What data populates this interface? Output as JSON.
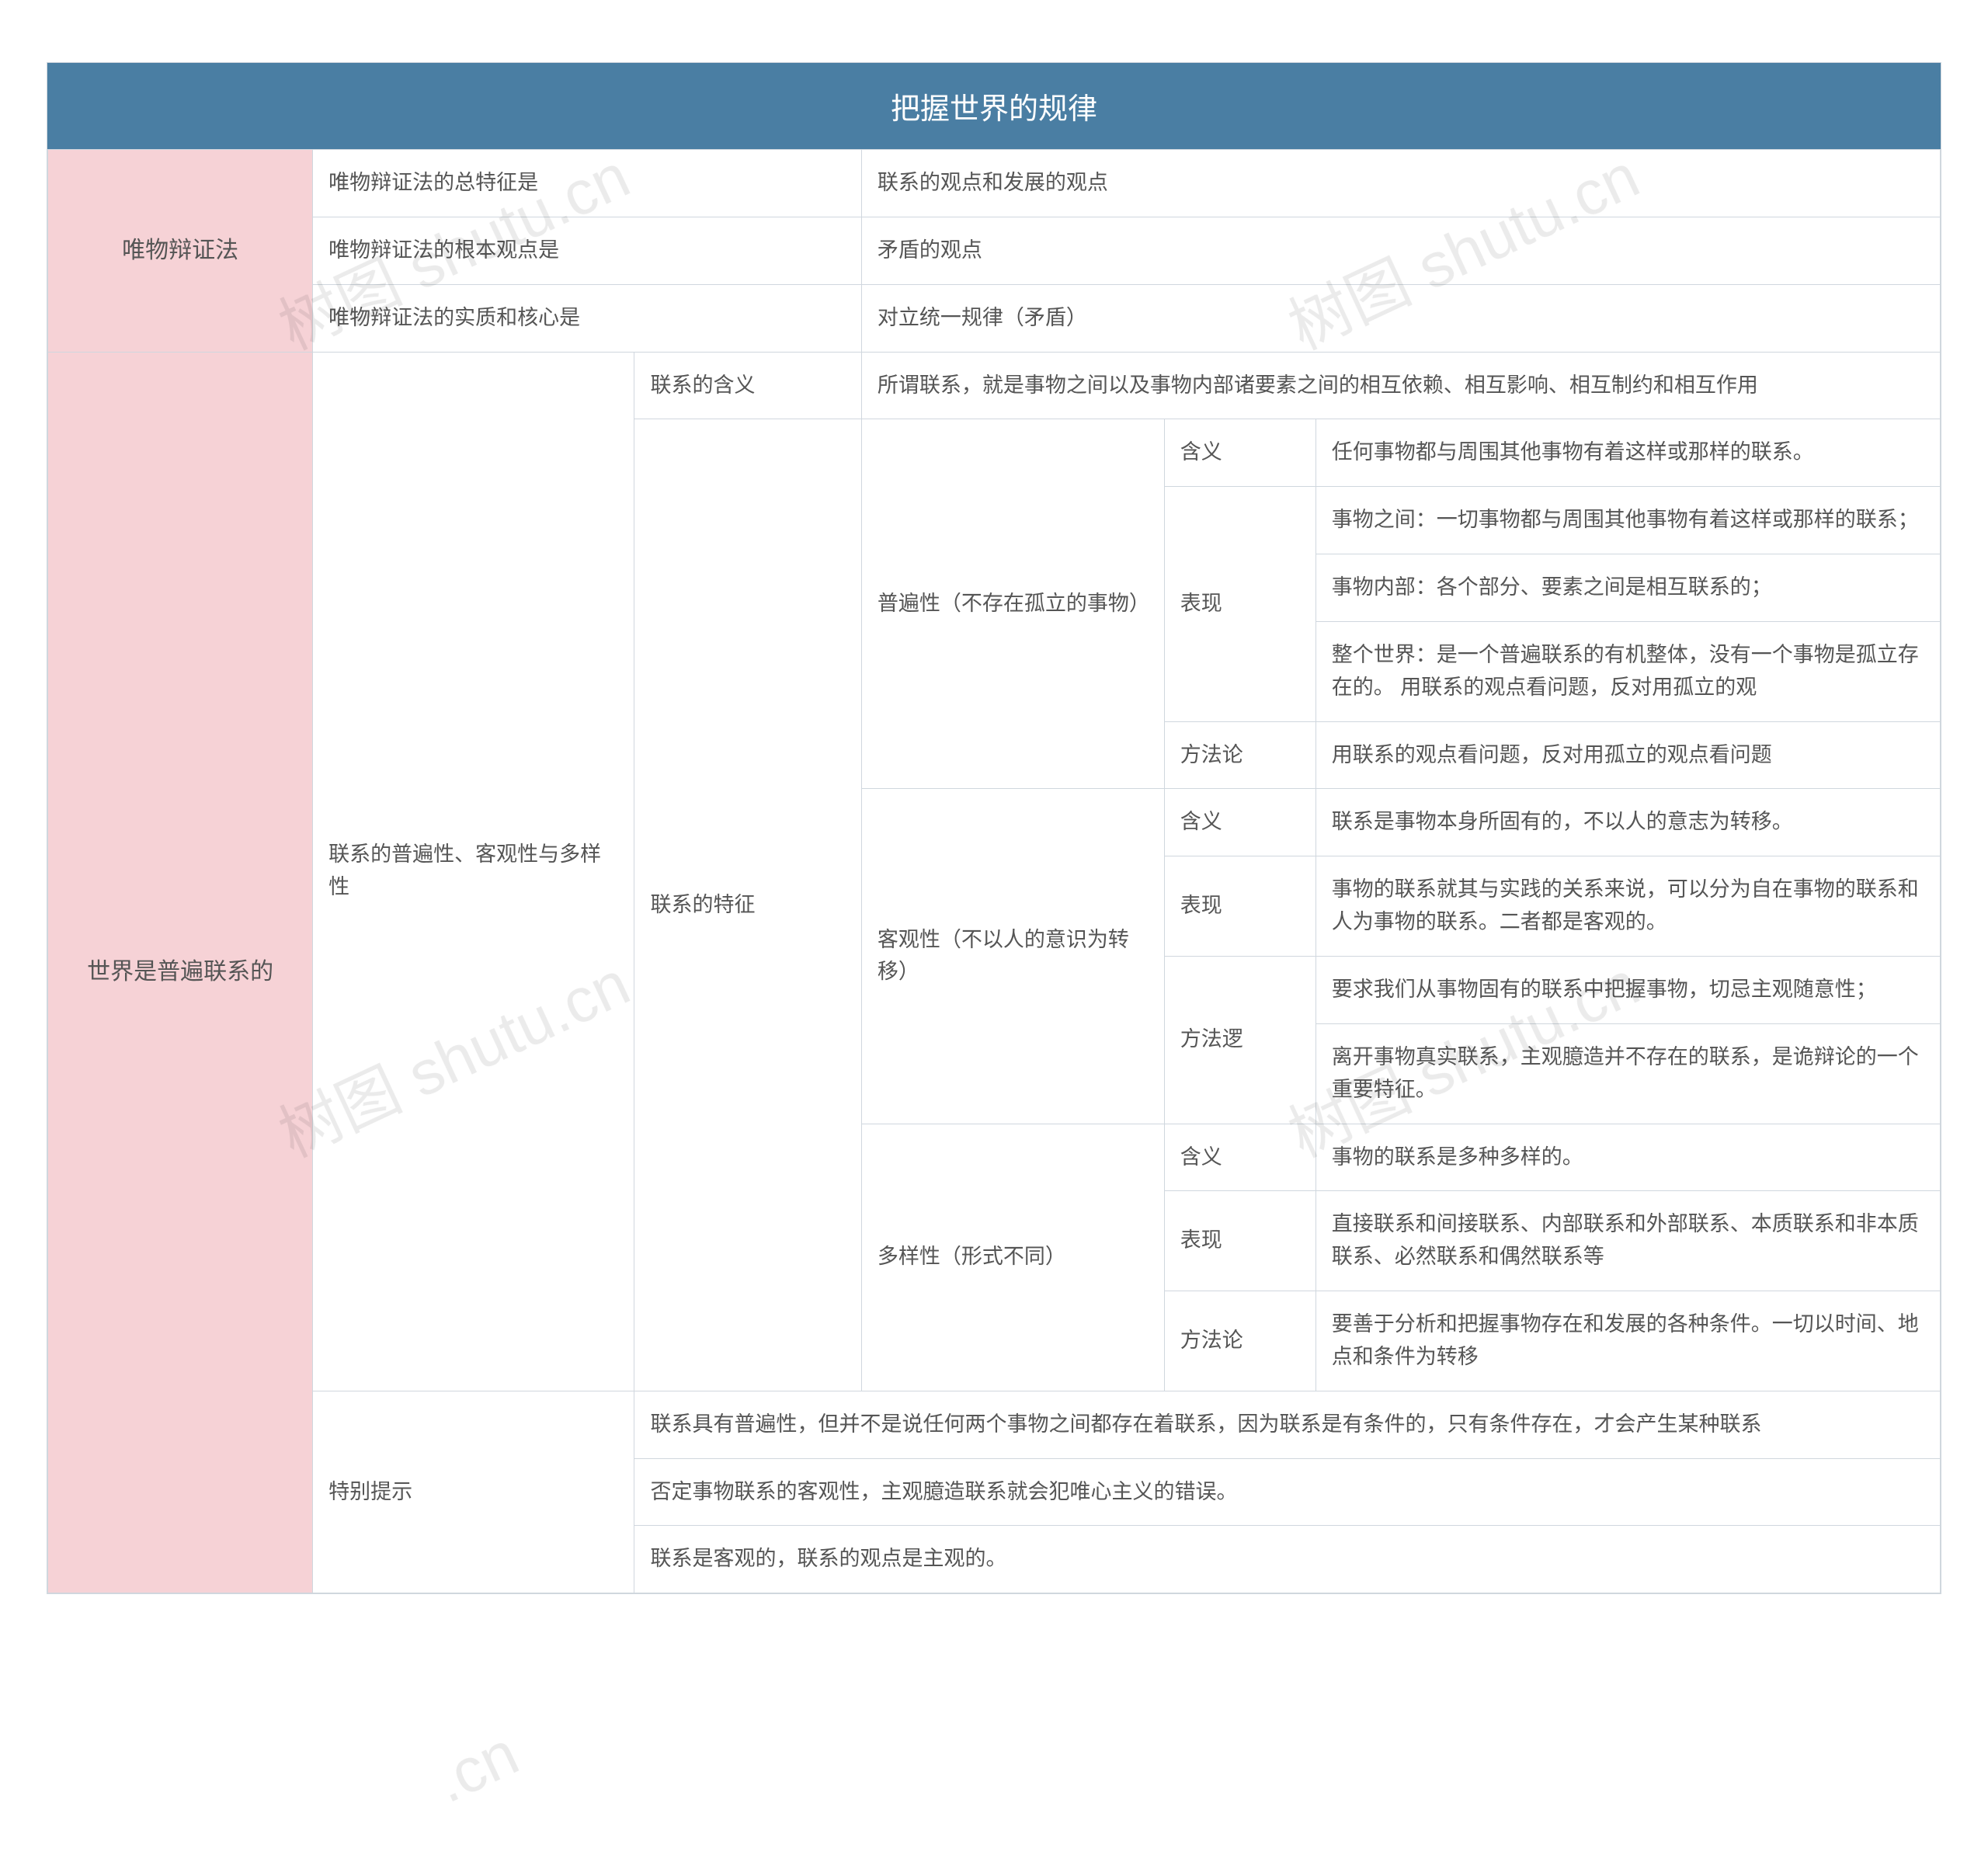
{
  "watermark_text": "树图 shutu.cn",
  "colors": {
    "header_bg": "#4a7ea3",
    "header_text": "#ffffff",
    "lvl1_bg": "#f6d2d6",
    "border": "#d0d7de",
    "cell_bg": "#ffffff",
    "text": "#555555"
  },
  "title": "把握世界的规律",
  "section1": {
    "label": "唯物辩证法",
    "rows": [
      {
        "k": "唯物辩证法的总特征是",
        "v": "联系的观点和发展的观点"
      },
      {
        "k": "唯物辩证法的根本观点是",
        "v": "矛盾的观点"
      },
      {
        "k": "唯物辩证法的实质和核心是",
        "v": "对立统一规律（矛盾）"
      }
    ]
  },
  "section2": {
    "label": "世界是普遍联系的",
    "group_label": "联系的普遍性、客观性与多样性",
    "meaning": {
      "k": "联系的含义",
      "v": "所谓联系，就是事物之间以及事物内部诸要素之间的相互依赖、相互影响、相互制约和相互作用"
    },
    "features_label": "联系的特征",
    "universality": {
      "label": "普遍性（不存在孤立的事物）",
      "meaning_k": "含义",
      "meaning_v": "任何事物都与周围其他事物有着这样或那样的联系。",
      "manifest_k": "表现",
      "manifest_v1": "事物之间：一切事物都与周围其他事物有着这样或那样的联系；",
      "manifest_v2": "事物内部：各个部分、要素之间是相互联系的；",
      "manifest_v3": "整个世界：是一个普遍联系的有机整体，没有一个事物是孤立存在的。 用联系的观点看问题，反对用孤立的观",
      "method_k": "方法论",
      "method_v": "用联系的观点看问题，反对用孤立的观点看问题"
    },
    "objectivity": {
      "label": "客观性（不以人的意识为转移）",
      "meaning_k": "含义",
      "meaning_v": "联系是事物本身所固有的，不以人的意志为转移。",
      "manifest_k": "表现",
      "manifest_v": "事物的联系就其与实践的关系来说，可以分为自在事物的联系和人为事物的联系。二者都是客观的。",
      "method_k": "方法逻",
      "method_v1": "要求我们从事物固有的联系中把握事物，切忌主观随意性；",
      "method_v2": "离开事物真实联系，主观臆造并不存在的联系，是诡辩论的一个重要特征。"
    },
    "diversity": {
      "label": "多样性（形式不同）",
      "meaning_k": "含义",
      "meaning_v": "事物的联系是多种多样的。",
      "manifest_k": "表现",
      "manifest_v": "直接联系和间接联系、内部联系和外部联系、本质联系和非本质联系、必然联系和偶然联系等",
      "method_k": "方法论",
      "method_v": "要善于分析和把握事物存在和发展的各种条件。一切以时间、地点和条件为转移"
    },
    "tips_label": "特别提示",
    "tips": [
      "联系具有普遍性，但并不是说任何两个事物之间都存在着联系，因为联系是有条件的，只有条件存在，才会产生某种联系",
      "否定事物联系的客观性，主观臆造联系就会犯唯心主义的错误。",
      "联系是客观的，联系的观点是主观的。"
    ]
  },
  "column_widths_pct": [
    14,
    17,
    12,
    16,
    8,
    33
  ]
}
